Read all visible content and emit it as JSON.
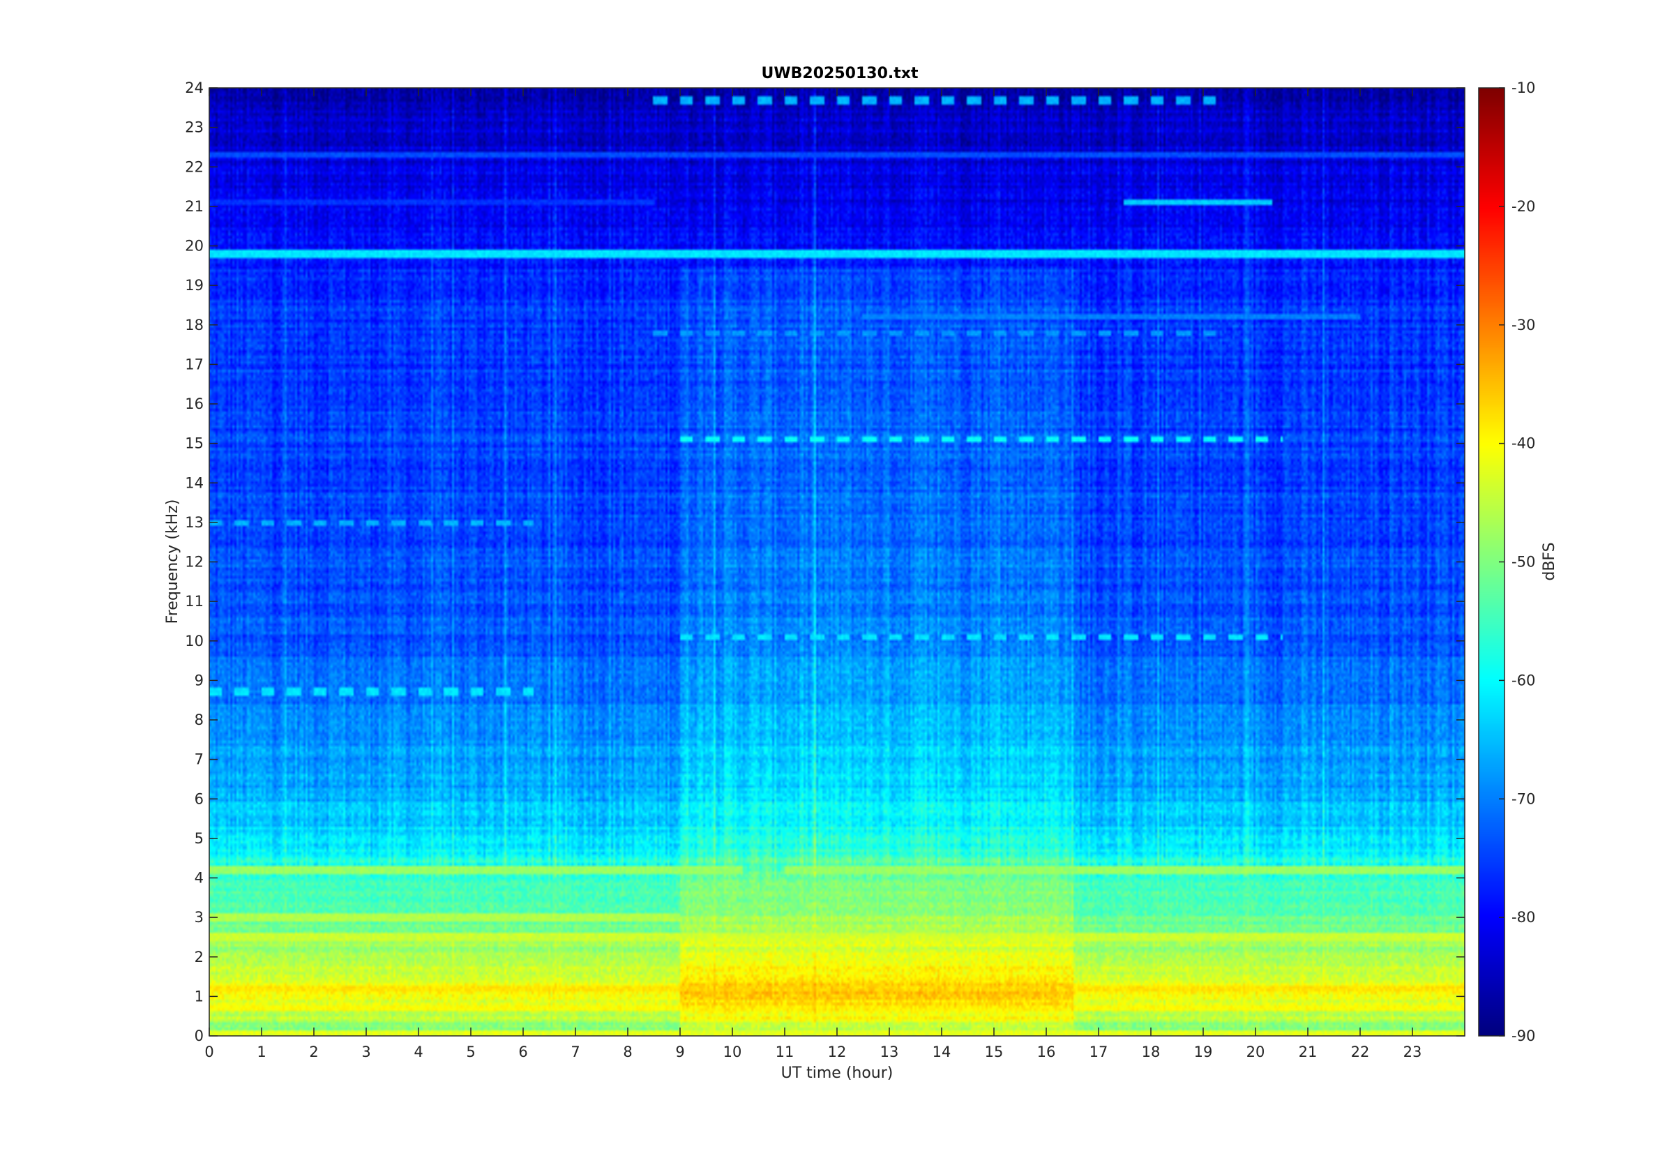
{
  "chart_data": {
    "type": "heatmap",
    "title": "UWB20250130.txt",
    "xlabel": "UT time (hour)",
    "ylabel": "Frequency (kHz)",
    "colorbar_label": "dBFS",
    "xlim": [
      0,
      24
    ],
    "ylim": [
      0,
      24
    ],
    "clim": [
      -90,
      -10
    ],
    "colormap": "jet",
    "grid": false,
    "x_ticks": [
      0,
      1,
      2,
      3,
      4,
      5,
      6,
      7,
      8,
      9,
      10,
      11,
      12,
      13,
      14,
      15,
      16,
      17,
      18,
      19,
      20,
      21,
      22,
      23
    ],
    "x_tick_labels": [
      "0",
      "1",
      "2",
      "3",
      "4",
      "5",
      "6",
      "7",
      "8",
      "9",
      "10",
      "11",
      "12",
      "13",
      "14",
      "15",
      "16",
      "17",
      "18",
      "19",
      "20",
      "21",
      "22",
      "23"
    ],
    "y_ticks": [
      0,
      1,
      2,
      3,
      4,
      5,
      6,
      7,
      8,
      9,
      10,
      11,
      12,
      13,
      14,
      15,
      16,
      17,
      18,
      19,
      20,
      21,
      22,
      23,
      24
    ],
    "y_tick_labels": [
      "0",
      "1",
      "2",
      "3",
      "4",
      "5",
      "6",
      "7",
      "8",
      "9",
      "10",
      "11",
      "12",
      "13",
      "14",
      "15",
      "16",
      "17",
      "18",
      "19",
      "20",
      "21",
      "22",
      "23",
      "24"
    ],
    "colorbar_ticks": [
      -90,
      -80,
      -70,
      -60,
      -50,
      -40,
      -30,
      -20,
      -10
    ],
    "colorbar_tick_labels": [
      "-90",
      "-80",
      "-70",
      "-60",
      "-50",
      "-40",
      "-30",
      "-20",
      "-10"
    ],
    "background_profile": [
      {
        "freq_khz": 0,
        "dbfs": -55
      },
      {
        "freq_khz": 0.5,
        "dbfs": -45
      },
      {
        "freq_khz": 1,
        "dbfs": -40
      },
      {
        "freq_khz": 2,
        "dbfs": -46
      },
      {
        "freq_khz": 3,
        "dbfs": -52
      },
      {
        "freq_khz": 4,
        "dbfs": -56
      },
      {
        "freq_khz": 5,
        "dbfs": -62
      },
      {
        "freq_khz": 6,
        "dbfs": -66
      },
      {
        "freq_khz": 8,
        "dbfs": -70
      },
      {
        "freq_khz": 10,
        "dbfs": -73
      },
      {
        "freq_khz": 14,
        "dbfs": -75
      },
      {
        "freq_khz": 19,
        "dbfs": -76
      },
      {
        "freq_khz": 20,
        "dbfs": -79
      },
      {
        "freq_khz": 21,
        "dbfs": -81
      },
      {
        "freq_khz": 23,
        "dbfs": -84
      },
      {
        "freq_khz": 24,
        "dbfs": -86
      }
    ],
    "daytime_enhancement": {
      "from_hour": 9,
      "to_hour": 16.5,
      "max_freq_khz": 19.5,
      "delta_db": 5
    },
    "continuous_lines": [
      {
        "freq_khz": 19.8,
        "from_hour": 0,
        "to_hour": 24,
        "dbfs": -62
      },
      {
        "freq_khz": 22.3,
        "from_hour": 0,
        "to_hour": 24,
        "dbfs": -74
      },
      {
        "freq_khz": 21.1,
        "from_hour": 0,
        "to_hour": 8.5,
        "dbfs": -76
      },
      {
        "freq_khz": 21.1,
        "from_hour": 17.5,
        "to_hour": 20.3,
        "dbfs": -64
      },
      {
        "freq_khz": 18.2,
        "from_hour": 12.5,
        "to_hour": 22,
        "dbfs": -70
      },
      {
        "freq_khz": 4.2,
        "from_hour": 0,
        "to_hour": 10.2,
        "dbfs": -48
      },
      {
        "freq_khz": 4.2,
        "from_hour": 11,
        "to_hour": 24,
        "dbfs": -48
      },
      {
        "freq_khz": 3.0,
        "from_hour": 0,
        "to_hour": 9,
        "dbfs": -46
      },
      {
        "freq_khz": 2.5,
        "from_hour": 0,
        "to_hour": 24,
        "dbfs": -44
      },
      {
        "freq_khz": 1.2,
        "from_hour": 0,
        "to_hour": 24,
        "dbfs": -38
      },
      {
        "freq_khz": 0.7,
        "from_hour": 0,
        "to_hour": 24,
        "dbfs": -40
      },
      {
        "freq_khz": 0.05,
        "from_hour": 0,
        "to_hour": 24,
        "dbfs": -42
      }
    ],
    "dashed_lines": [
      {
        "freq_khz": 13.0,
        "from_hour": 0,
        "to_hour": 6.2,
        "dbfs": -66
      },
      {
        "freq_khz": 8.7,
        "from_hour": 0,
        "to_hour": 6.2,
        "dbfs": -62
      },
      {
        "freq_khz": 15.1,
        "from_hour": 9,
        "to_hour": 20.5,
        "dbfs": -60
      },
      {
        "freq_khz": 10.1,
        "from_hour": 9,
        "to_hour": 20.5,
        "dbfs": -62
      },
      {
        "freq_khz": 23.7,
        "from_hour": 8.5,
        "to_hour": 19.3,
        "dbfs": -66
      },
      {
        "freq_khz": 17.8,
        "from_hour": 8.5,
        "to_hour": 19.3,
        "dbfs": -68
      }
    ]
  }
}
